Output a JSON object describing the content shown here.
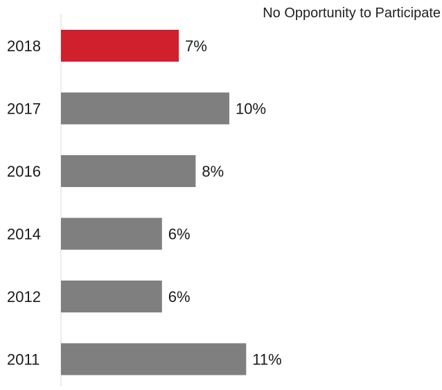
{
  "chart_data": {
    "type": "bar",
    "orientation": "horizontal",
    "title": "No Opportunity to Participate",
    "categories": [
      "2018",
      "2017",
      "2016",
      "2014",
      "2012",
      "2011"
    ],
    "values": [
      7,
      10,
      8,
      6,
      6,
      11
    ],
    "value_labels": [
      "7%",
      "10%",
      "8%",
      "6%",
      "6%",
      "11%"
    ],
    "colors": [
      "#d0202d",
      "#7f7f7f",
      "#7f7f7f",
      "#7f7f7f",
      "#7f7f7f",
      "#7f7f7f"
    ],
    "xlim": [
      0,
      11
    ],
    "grid": false,
    "legend": "none"
  }
}
